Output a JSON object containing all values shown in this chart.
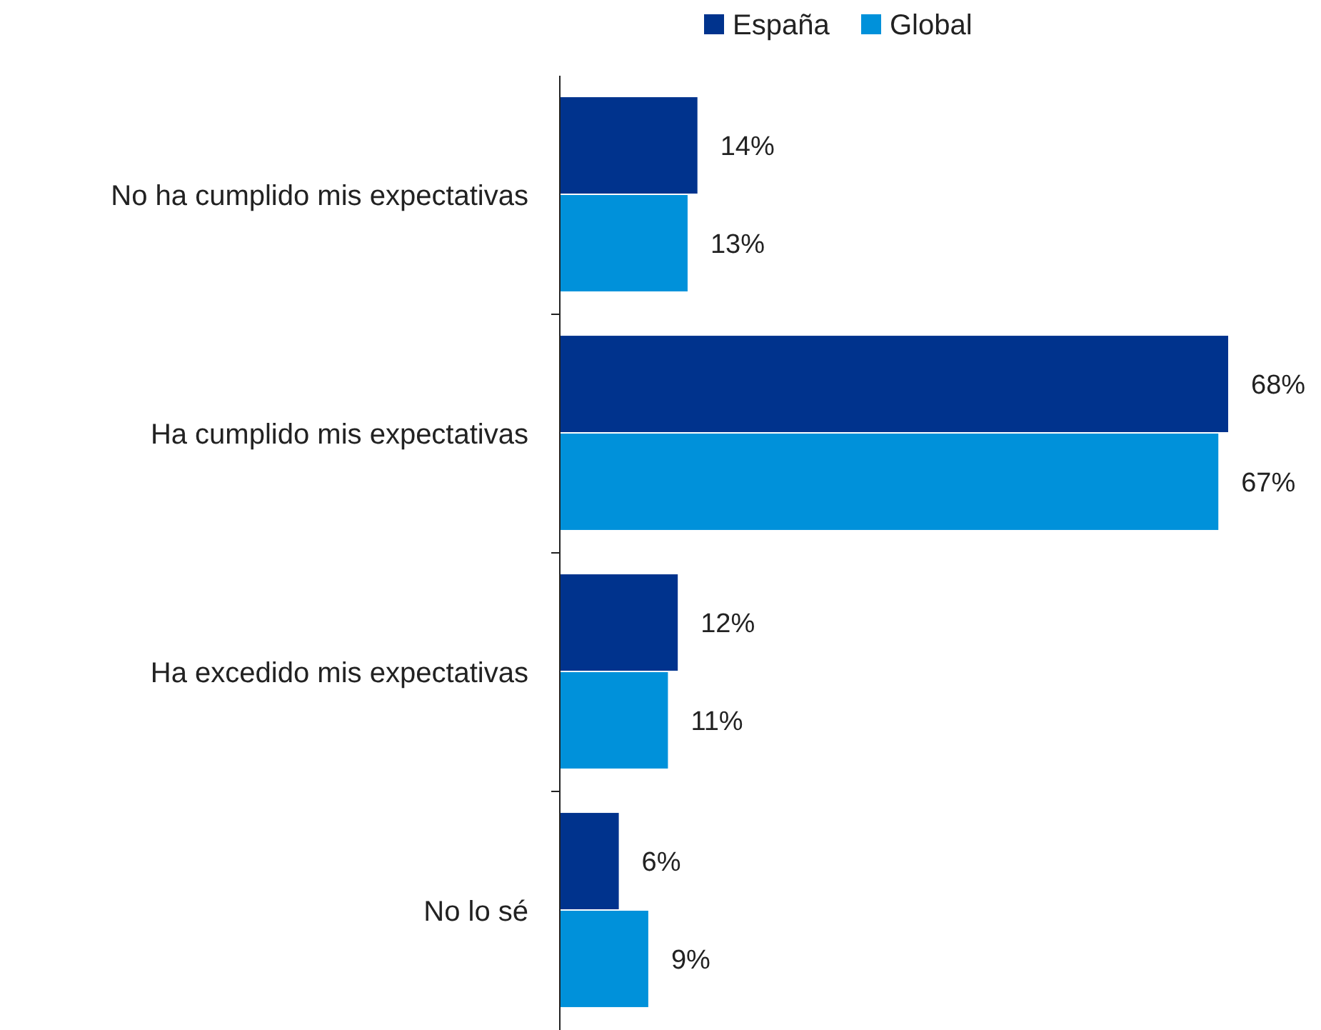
{
  "chart_data": {
    "type": "bar",
    "orientation": "horizontal",
    "legend": "top",
    "categories": [
      "No ha cumplido mis expectativas",
      "Ha cumplido mis expectativas",
      "Ha excedido mis expectativas",
      "No lo sé"
    ],
    "series": [
      {
        "name": "España",
        "color": "#00338d",
        "values": [
          14,
          68,
          12,
          6
        ],
        "value_labels": [
          "14%",
          "68%",
          "12%",
          "6%"
        ]
      },
      {
        "name": "Global",
        "color": "#0091da",
        "values": [
          13,
          67,
          11,
          9
        ],
        "value_labels": [
          "13%",
          "67%",
          "11%",
          "9%"
        ]
      }
    ]
  }
}
